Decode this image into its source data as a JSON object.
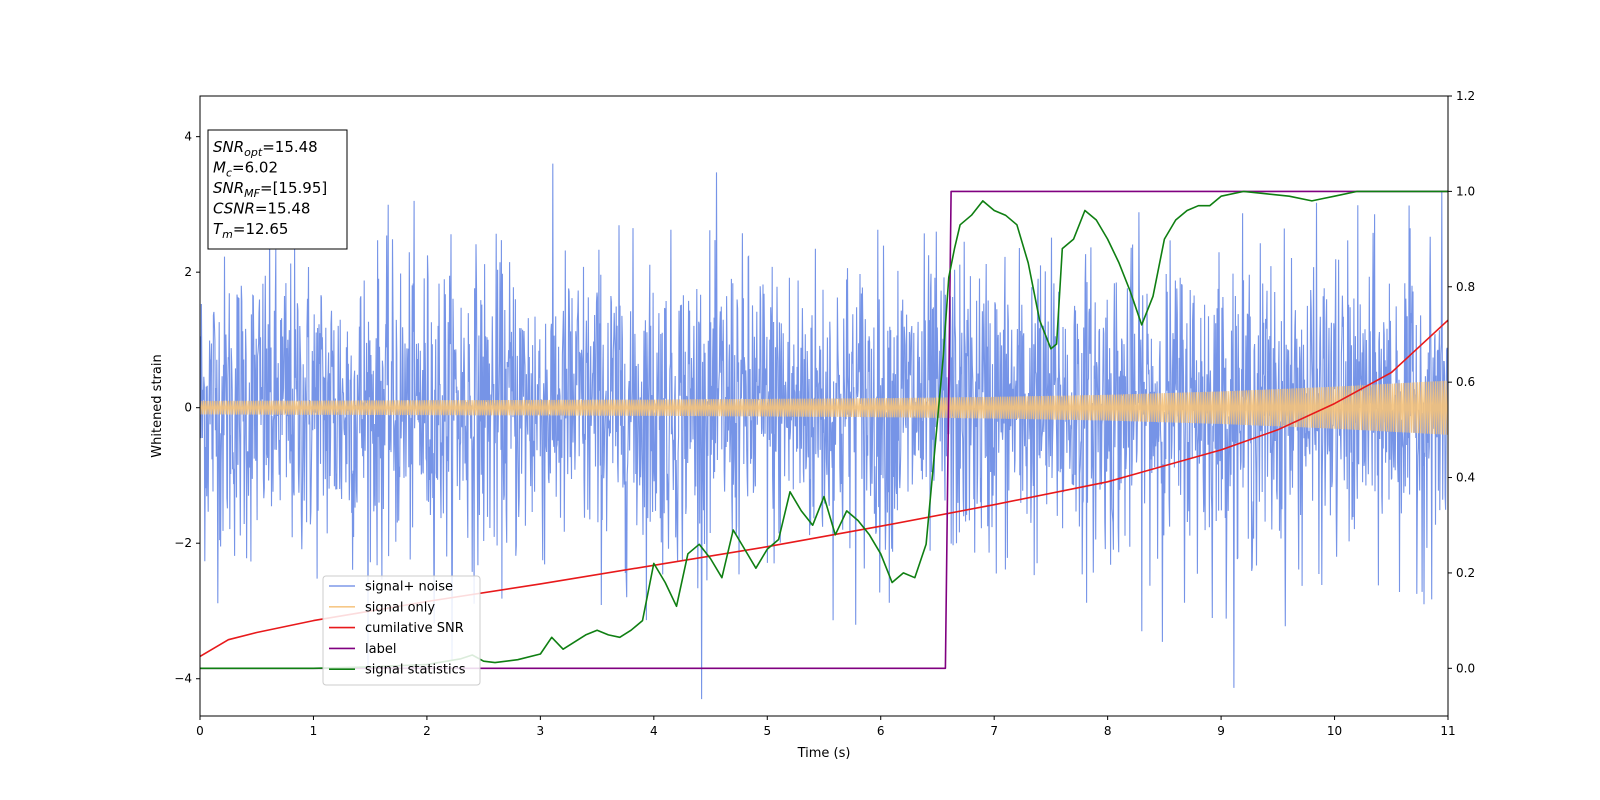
{
  "chart_data": {
    "type": "line",
    "xlabel": "Time (s)",
    "ylabel": "Whitened strain",
    "xlim": [
      0,
      11
    ],
    "ylim": [
      -4.55,
      4.6
    ],
    "y2lim": [
      -0.1,
      1.2
    ],
    "xticks": [
      "0",
      "1",
      "2",
      "3",
      "4",
      "5",
      "6",
      "7",
      "8",
      "9",
      "10",
      "11"
    ],
    "yticks": [
      "−4",
      "−2",
      "0",
      "2",
      "4"
    ],
    "y2ticks": [
      "0.0",
      "0.2",
      "0.4",
      "0.6",
      "0.8",
      "1.0",
      "1.2"
    ],
    "legend_position": "lower-left",
    "grid": false,
    "info_box": {
      "lines": [
        {
          "main": "SNR",
          "sub": "opt",
          "rest": "=15.48"
        },
        {
          "main": "M",
          "sub": "c",
          "rest": "=6.02"
        },
        {
          "main": "SNR",
          "sub": "MF",
          "rest": "=[15.95]"
        },
        {
          "main": "CSNR",
          "sub": "",
          "rest": "=15.48"
        },
        {
          "main": "T",
          "sub": "m",
          "rest": "=12.65"
        }
      ]
    },
    "series": [
      {
        "name": "signal+ noise",
        "axis": "left",
        "color": "#6f8ee6",
        "style": "noise",
        "amplitude_sigma": 1.1
      },
      {
        "name": "signal only",
        "axis": "left",
        "color": "#f5c27a",
        "style": "chirp",
        "x": [
          0,
          2,
          4,
          6,
          7,
          8,
          9,
          10,
          11
        ],
        "amplitude": [
          0.1,
          0.11,
          0.12,
          0.14,
          0.16,
          0.19,
          0.24,
          0.31,
          0.4
        ]
      },
      {
        "name": "cumilative SNR",
        "axis": "right",
        "color": "#e8191b",
        "x": [
          0,
          0.25,
          0.5,
          1,
          1.5,
          2,
          3,
          4,
          5,
          6,
          7,
          8,
          9,
          9.5,
          10,
          10.5,
          11
        ],
        "y": [
          0.025,
          0.06,
          0.075,
          0.1,
          0.12,
          0.14,
          0.177,
          0.216,
          0.255,
          0.298,
          0.343,
          0.391,
          0.458,
          0.5,
          0.555,
          0.62,
          0.73
        ]
      },
      {
        "name": "label",
        "axis": "right",
        "color": "#800080",
        "x": [
          0,
          6.57,
          6.62,
          11
        ],
        "y": [
          0,
          0,
          1,
          1
        ]
      },
      {
        "name": "signal statistics",
        "axis": "right",
        "color": "#0f7f12",
        "x": [
          0,
          0.5,
          1,
          1.5,
          2,
          2.3,
          2.4,
          2.5,
          2.6,
          2.8,
          3.0,
          3.1,
          3.2,
          3.3,
          3.4,
          3.5,
          3.6,
          3.7,
          3.8,
          3.9,
          4.0,
          4.1,
          4.2,
          4.3,
          4.4,
          4.5,
          4.6,
          4.7,
          4.8,
          4.9,
          5.0,
          5.1,
          5.2,
          5.3,
          5.4,
          5.5,
          5.6,
          5.7,
          5.8,
          5.9,
          6.0,
          6.1,
          6.2,
          6.3,
          6.4,
          6.5,
          6.55,
          6.6,
          6.65,
          6.7,
          6.8,
          6.9,
          7.0,
          7.1,
          7.2,
          7.3,
          7.4,
          7.5,
          7.55,
          7.6,
          7.7,
          7.8,
          7.9,
          8.0,
          8.1,
          8.2,
          8.3,
          8.4,
          8.5,
          8.6,
          8.7,
          8.8,
          8.9,
          9.0,
          9.2,
          9.4,
          9.6,
          9.8,
          9.9,
          10.0,
          10.2,
          10.5,
          11.0
        ],
        "y": [
          0.0,
          0.0,
          0.0,
          0.003,
          0.008,
          0.02,
          0.028,
          0.015,
          0.012,
          0.018,
          0.03,
          0.065,
          0.04,
          0.055,
          0.07,
          0.08,
          0.07,
          0.065,
          0.08,
          0.1,
          0.22,
          0.18,
          0.13,
          0.24,
          0.26,
          0.23,
          0.19,
          0.29,
          0.25,
          0.21,
          0.25,
          0.27,
          0.37,
          0.33,
          0.3,
          0.36,
          0.28,
          0.33,
          0.31,
          0.28,
          0.24,
          0.18,
          0.2,
          0.19,
          0.26,
          0.52,
          0.65,
          0.82,
          0.88,
          0.93,
          0.95,
          0.98,
          0.96,
          0.95,
          0.93,
          0.85,
          0.73,
          0.67,
          0.68,
          0.88,
          0.9,
          0.96,
          0.94,
          0.9,
          0.85,
          0.79,
          0.72,
          0.78,
          0.9,
          0.94,
          0.96,
          0.97,
          0.97,
          0.99,
          1.0,
          0.995,
          0.99,
          0.98,
          0.985,
          0.99,
          1.0,
          1.0,
          1.0
        ]
      }
    ]
  }
}
